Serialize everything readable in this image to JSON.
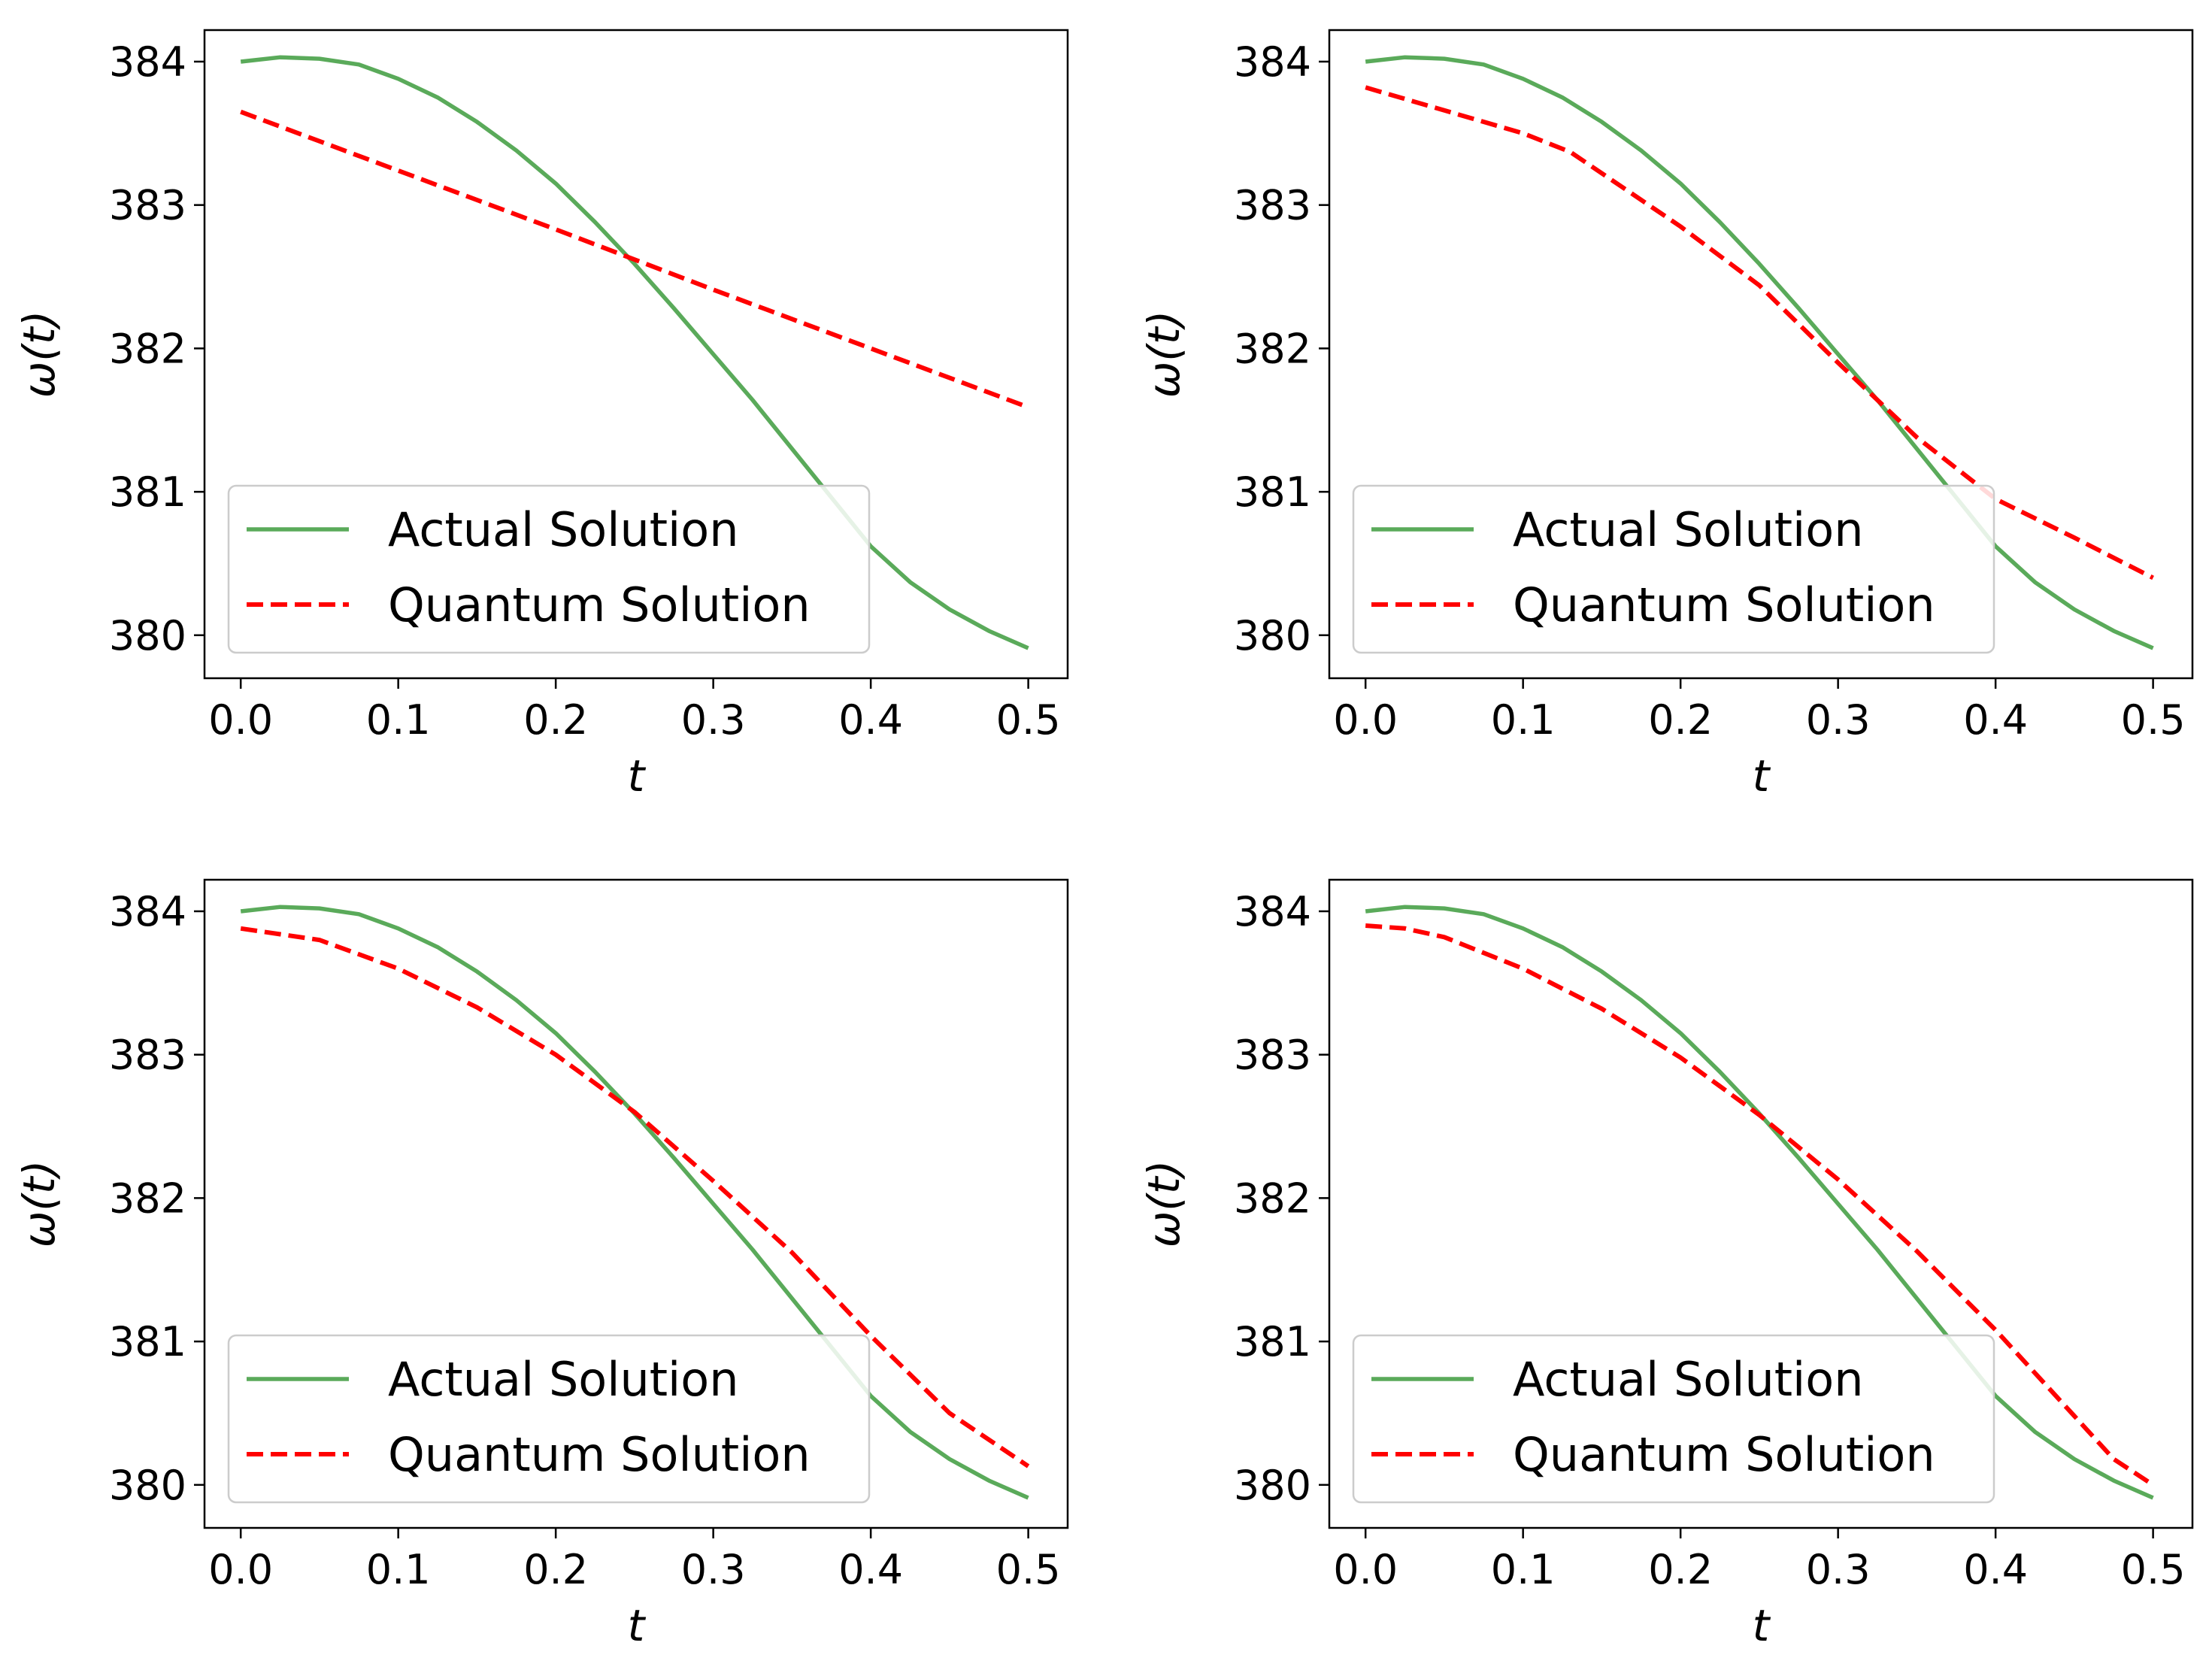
{
  "figure": {
    "background": "#ffffff"
  },
  "chart_data": [
    {
      "type": "line",
      "title": "",
      "xlabel": "t",
      "ylabel": "ω(t)",
      "xlim": [
        -0.023,
        0.525
      ],
      "ylim": [
        379.7,
        384.22
      ],
      "xticks": [
        0.0,
        0.1,
        0.2,
        0.3,
        0.4,
        0.5
      ],
      "xtick_labels": [
        "0.0",
        "0.1",
        "0.2",
        "0.3",
        "0.4",
        "0.5"
      ],
      "yticks": [
        380,
        381,
        382,
        383,
        384
      ],
      "ytick_labels": [
        "380",
        "381",
        "382",
        "383",
        "384"
      ],
      "grid": false,
      "legend_position": "lower left",
      "series": [
        {
          "name": "Actual Solution",
          "color": "#5aaa5a",
          "style": "solid",
          "x": [
            0.0,
            0.025,
            0.05,
            0.075,
            0.1,
            0.125,
            0.15,
            0.175,
            0.2,
            0.225,
            0.25,
            0.275,
            0.3,
            0.325,
            0.35,
            0.375,
            0.4,
            0.425,
            0.45,
            0.475,
            0.5
          ],
          "y": [
            384.0,
            384.03,
            384.02,
            383.98,
            383.88,
            383.75,
            383.58,
            383.38,
            383.15,
            382.88,
            382.59,
            382.28,
            381.96,
            381.64,
            381.3,
            380.96,
            380.62,
            380.37,
            380.18,
            380.03,
            379.91
          ]
        },
        {
          "name": "Quantum Solution",
          "color": "#ff0000",
          "style": "dashed",
          "x": [
            0.0,
            0.1,
            0.2,
            0.3,
            0.4,
            0.5
          ],
          "y": [
            383.65,
            383.24,
            382.83,
            382.41,
            382.0,
            381.59
          ]
        }
      ]
    },
    {
      "type": "line",
      "title": "",
      "xlabel": "t",
      "ylabel": "ω(t)",
      "xlim": [
        -0.023,
        0.525
      ],
      "ylim": [
        379.7,
        384.22
      ],
      "xticks": [
        0.0,
        0.1,
        0.2,
        0.3,
        0.4,
        0.5
      ],
      "xtick_labels": [
        "0.0",
        "0.1",
        "0.2",
        "0.3",
        "0.4",
        "0.5"
      ],
      "yticks": [
        380,
        381,
        382,
        383,
        384
      ],
      "ytick_labels": [
        "380",
        "381",
        "382",
        "383",
        "384"
      ],
      "grid": false,
      "legend_position": "lower left",
      "series": [
        {
          "name": "Actual Solution",
          "color": "#5aaa5a",
          "style": "solid",
          "x": [
            0.0,
            0.025,
            0.05,
            0.075,
            0.1,
            0.125,
            0.15,
            0.175,
            0.2,
            0.225,
            0.25,
            0.275,
            0.3,
            0.325,
            0.35,
            0.375,
            0.4,
            0.425,
            0.45,
            0.475,
            0.5
          ],
          "y": [
            384.0,
            384.03,
            384.02,
            383.98,
            383.88,
            383.75,
            383.58,
            383.38,
            383.15,
            382.88,
            382.59,
            382.28,
            381.96,
            381.64,
            381.3,
            380.96,
            380.62,
            380.37,
            380.18,
            380.03,
            379.91
          ]
        },
        {
          "name": "Quantum Solution",
          "color": "#ff0000",
          "style": "dashed",
          "x": [
            0.0,
            0.05,
            0.1,
            0.13,
            0.2,
            0.25,
            0.3,
            0.35,
            0.4,
            0.45,
            0.5
          ],
          "y": [
            383.82,
            383.66,
            383.5,
            383.37,
            382.85,
            382.44,
            381.9,
            381.38,
            380.95,
            380.68,
            380.4
          ]
        }
      ]
    },
    {
      "type": "line",
      "title": "",
      "xlabel": "t",
      "ylabel": "ω(t)",
      "xlim": [
        -0.023,
        0.525
      ],
      "ylim": [
        379.7,
        384.22
      ],
      "xticks": [
        0.0,
        0.1,
        0.2,
        0.3,
        0.4,
        0.5
      ],
      "xtick_labels": [
        "0.0",
        "0.1",
        "0.2",
        "0.3",
        "0.4",
        "0.5"
      ],
      "yticks": [
        380,
        381,
        382,
        383,
        384
      ],
      "ytick_labels": [
        "380",
        "381",
        "382",
        "383",
        "384"
      ],
      "grid": false,
      "legend_position": "lower left",
      "series": [
        {
          "name": "Actual Solution",
          "color": "#5aaa5a",
          "style": "solid",
          "x": [
            0.0,
            0.025,
            0.05,
            0.075,
            0.1,
            0.125,
            0.15,
            0.175,
            0.2,
            0.225,
            0.25,
            0.275,
            0.3,
            0.325,
            0.35,
            0.375,
            0.4,
            0.425,
            0.45,
            0.475,
            0.5
          ],
          "y": [
            384.0,
            384.03,
            384.02,
            383.98,
            383.88,
            383.75,
            383.58,
            383.38,
            383.15,
            382.88,
            382.59,
            382.28,
            381.96,
            381.64,
            381.3,
            380.96,
            380.62,
            380.37,
            380.18,
            380.03,
            379.91
          ]
        },
        {
          "name": "Quantum Solution",
          "color": "#ff0000",
          "style": "dashed",
          "x": [
            0.0,
            0.05,
            0.1,
            0.15,
            0.2,
            0.25,
            0.3,
            0.35,
            0.4,
            0.45,
            0.5
          ],
          "y": [
            383.88,
            383.8,
            383.6,
            383.33,
            383.0,
            382.6,
            382.12,
            381.62,
            381.04,
            380.5,
            380.13
          ]
        }
      ]
    },
    {
      "type": "line",
      "title": "",
      "xlabel": "t",
      "ylabel": "ω(t)",
      "xlim": [
        -0.023,
        0.525
      ],
      "ylim": [
        379.7,
        384.22
      ],
      "xticks": [
        0.0,
        0.1,
        0.2,
        0.3,
        0.4,
        0.5
      ],
      "xtick_labels": [
        "0.0",
        "0.1",
        "0.2",
        "0.3",
        "0.4",
        "0.5"
      ],
      "yticks": [
        380,
        381,
        382,
        383,
        384
      ],
      "ytick_labels": [
        "380",
        "381",
        "382",
        "383",
        "384"
      ],
      "grid": false,
      "legend_position": "lower left",
      "series": [
        {
          "name": "Actual Solution",
          "color": "#5aaa5a",
          "style": "solid",
          "x": [
            0.0,
            0.025,
            0.05,
            0.075,
            0.1,
            0.125,
            0.15,
            0.175,
            0.2,
            0.225,
            0.25,
            0.275,
            0.3,
            0.325,
            0.35,
            0.375,
            0.4,
            0.425,
            0.45,
            0.475,
            0.5
          ],
          "y": [
            384.0,
            384.03,
            384.02,
            383.98,
            383.88,
            383.75,
            383.58,
            383.38,
            383.15,
            382.88,
            382.59,
            382.28,
            381.96,
            381.64,
            381.3,
            380.96,
            380.62,
            380.37,
            380.18,
            380.03,
            379.91
          ]
        },
        {
          "name": "Quantum Solution",
          "color": "#ff0000",
          "style": "dashed",
          "x": [
            0.0,
            0.025,
            0.05,
            0.1,
            0.15,
            0.2,
            0.25,
            0.3,
            0.35,
            0.4,
            0.45,
            0.475,
            0.5
          ],
          "y": [
            383.9,
            383.88,
            383.82,
            383.6,
            383.32,
            382.98,
            382.58,
            382.13,
            381.63,
            381.08,
            380.48,
            380.18,
            380.0
          ]
        }
      ]
    }
  ]
}
